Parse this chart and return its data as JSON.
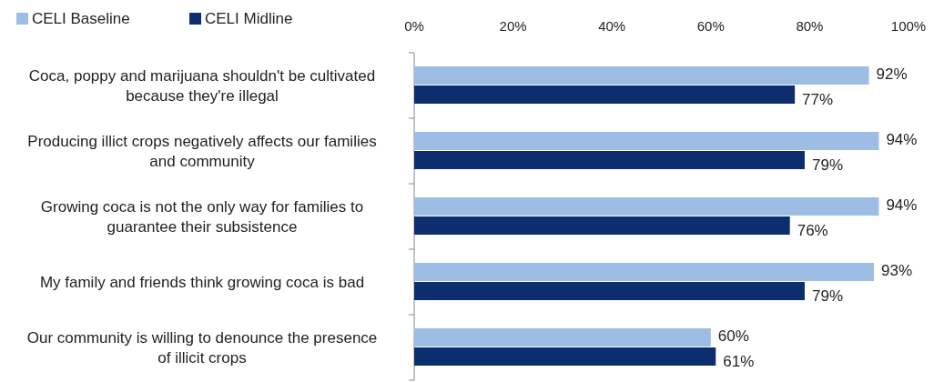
{
  "chart_data": {
    "type": "bar",
    "orientation": "horizontal",
    "categories": [
      "Coca, poppy and marijuana shouldn't be cultivated because they're illegal",
      "Producing illict crops negatively affects our families and community",
      "Growing coca is not the only way for families to guarantee their subsistence",
      "My family and friends think growing coca is bad",
      "Our community is willing to denounce the presence of illicit crops"
    ],
    "series": [
      {
        "name": "CELI Baseline",
        "color": "#9dbde4",
        "values": [
          92,
          94,
          94,
          93,
          60
        ]
      },
      {
        "name": "CELI Midline",
        "color": "#0d2e6e",
        "values": [
          77,
          79,
          76,
          79,
          61
        ]
      }
    ],
    "xlim": [
      0,
      100
    ],
    "xticks": [
      {
        "value": 0,
        "label": "0%"
      },
      {
        "value": 20,
        "label": "20%"
      },
      {
        "value": 40,
        "label": "40%"
      },
      {
        "value": 60,
        "label": "60%"
      },
      {
        "value": 80,
        "label": "80%"
      },
      {
        "value": 100,
        "label": "100%"
      }
    ],
    "value_labels": [
      [
        "92%",
        "94%",
        "94%",
        "93%",
        "60%"
      ],
      [
        "77%",
        "79%",
        "76%",
        "79%",
        "61%"
      ]
    ],
    "grid": false,
    "legend": "top left"
  }
}
